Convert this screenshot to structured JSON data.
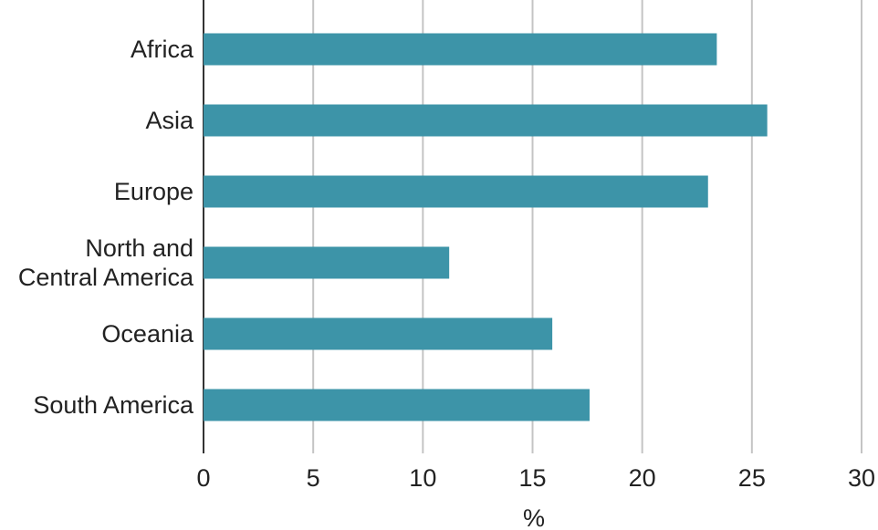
{
  "chart_data": {
    "type": "bar",
    "orientation": "horizontal",
    "x_label": "%",
    "categories": [
      "Africa",
      "Asia",
      "Europe",
      "North and\nCentral America",
      "Oceania",
      "South America"
    ],
    "values": [
      23.4,
      25.7,
      23.0,
      11.2,
      15.9,
      17.6
    ],
    "color": "#3d94a8",
    "xlim": [
      0,
      30
    ],
    "xticks": [
      0,
      5,
      10,
      15,
      20,
      25,
      30
    ],
    "grid": true
  }
}
